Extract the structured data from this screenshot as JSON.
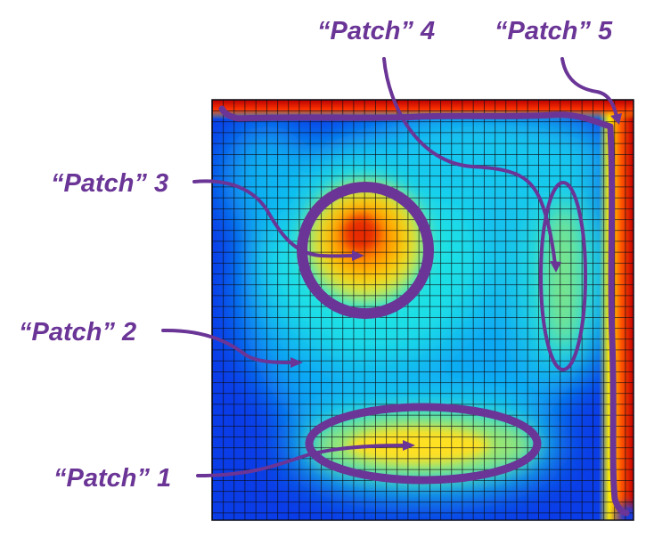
{
  "figure": {
    "accent_color": "#6a3596",
    "grid_line_color": "#111111",
    "colormap": "jet",
    "labels": [
      {
        "id": "patch-1",
        "text": "“Patch” 1"
      },
      {
        "id": "patch-2",
        "text": "“Patch” 2"
      },
      {
        "id": "patch-3",
        "text": "“Patch” 3"
      },
      {
        "id": "patch-4",
        "text": "“Patch” 4"
      },
      {
        "id": "patch-5",
        "text": "“Patch” 5"
      }
    ]
  }
}
